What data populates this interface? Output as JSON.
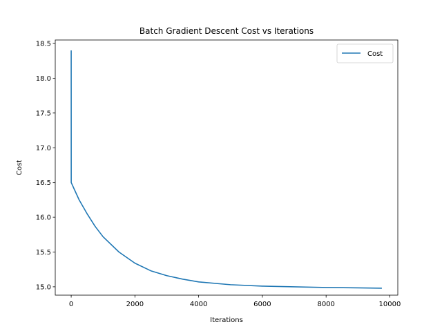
{
  "chart_data": {
    "type": "line",
    "title": "Batch Gradient Descent Cost vs Iterations",
    "xlabel": "Iterations",
    "ylabel": "Cost",
    "xlim": [
      -500,
      10250
    ],
    "ylim": [
      14.88,
      18.55
    ],
    "x_ticks": [
      0,
      2000,
      4000,
      6000,
      8000,
      10000
    ],
    "x_tick_labels": [
      "0",
      "2000",
      "4000",
      "6000",
      "8000",
      "10000"
    ],
    "y_ticks": [
      15.0,
      15.5,
      16.0,
      16.5,
      17.0,
      17.5,
      18.0,
      18.5
    ],
    "y_tick_labels": [
      "15.0",
      "15.5",
      "16.0",
      "16.5",
      "17.0",
      "17.5",
      "18.0",
      "18.5"
    ],
    "grid": false,
    "legend": {
      "position": "top-right",
      "entries": [
        "Cost"
      ]
    },
    "series": [
      {
        "name": "Cost",
        "color": "#1f77b4",
        "x": [
          0,
          1,
          100,
          250,
          500,
          750,
          1000,
          1500,
          2000,
          2500,
          3000,
          3500,
          4000,
          5000,
          6000,
          7000,
          8000,
          9000,
          9750
        ],
        "y": [
          18.4,
          16.5,
          16.4,
          16.25,
          16.05,
          15.87,
          15.72,
          15.5,
          15.34,
          15.23,
          15.16,
          15.11,
          15.07,
          15.03,
          15.01,
          15.0,
          14.99,
          14.985,
          14.98
        ]
      }
    ]
  }
}
